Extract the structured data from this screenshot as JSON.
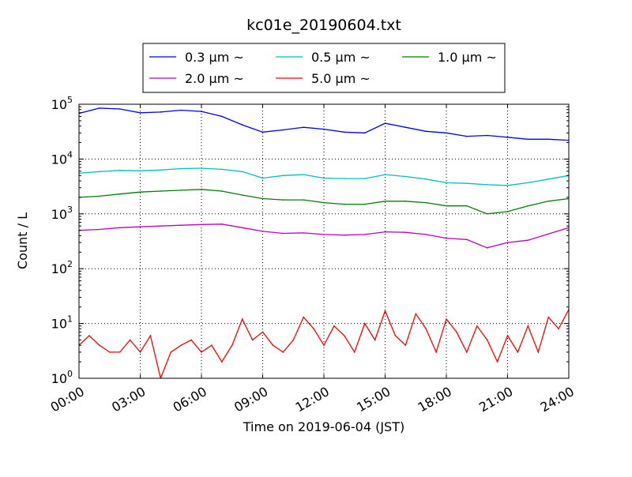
{
  "chart_data": {
    "type": "line",
    "title": "kc01e_20190604.txt",
    "xlabel": "Time on 2019-06-04 (JST)",
    "ylabel": "Count / L",
    "x_range": [
      "00:00",
      "24:00"
    ],
    "x_ticks": [
      "00:00",
      "03:00",
      "06:00",
      "09:00",
      "12:00",
      "15:00",
      "18:00",
      "21:00",
      "24:00"
    ],
    "y_scale": "log",
    "ylim": [
      1,
      100000
    ],
    "y_ticks": [
      {
        "base": "10",
        "exp": "0"
      },
      {
        "base": "10",
        "exp": "1"
      },
      {
        "base": "10",
        "exp": "2"
      },
      {
        "base": "10",
        "exp": "3"
      },
      {
        "base": "10",
        "exp": "4"
      },
      {
        "base": "10",
        "exp": "5"
      }
    ],
    "grid": true,
    "legend_position": "top-center",
    "series": [
      {
        "name": "0.3 μm ~",
        "color": "#0000ff",
        "x": [
          "00:00",
          "01:00",
          "02:00",
          "03:00",
          "04:00",
          "05:00",
          "06:00",
          "07:00",
          "08:00",
          "09:00",
          "10:00",
          "11:00",
          "12:00",
          "13:00",
          "14:00",
          "15:00",
          "16:00",
          "17:00",
          "18:00",
          "19:00",
          "20:00",
          "21:00",
          "22:00",
          "23:00",
          "24:00"
        ],
        "values": [
          68000,
          85000,
          82000,
          70000,
          72000,
          78000,
          74000,
          60000,
          42000,
          31000,
          34000,
          38000,
          35000,
          31000,
          30000,
          45000,
          38000,
          32000,
          30000,
          26000,
          27000,
          25000,
          23000,
          23000,
          22000
        ]
      },
      {
        "name": "0.5 μm ~",
        "color": "#00bfbf",
        "x": [
          "00:00",
          "01:00",
          "02:00",
          "03:00",
          "04:00",
          "05:00",
          "06:00",
          "07:00",
          "08:00",
          "09:00",
          "10:00",
          "11:00",
          "12:00",
          "13:00",
          "14:00",
          "15:00",
          "16:00",
          "17:00",
          "18:00",
          "19:00",
          "20:00",
          "21:00",
          "22:00",
          "23:00",
          "24:00"
        ],
        "values": [
          5500,
          5900,
          6200,
          6100,
          6300,
          6700,
          6800,
          6500,
          5900,
          4500,
          5000,
          5200,
          4500,
          4400,
          4400,
          5200,
          4800,
          4300,
          3700,
          3600,
          3400,
          3300,
          3700,
          4300,
          5000
        ]
      },
      {
        "name": "1.0 μm ~",
        "color": "#008000",
        "x": [
          "00:00",
          "01:00",
          "02:00",
          "03:00",
          "04:00",
          "05:00",
          "06:00",
          "07:00",
          "08:00",
          "09:00",
          "10:00",
          "11:00",
          "12:00",
          "13:00",
          "14:00",
          "15:00",
          "16:00",
          "17:00",
          "18:00",
          "19:00",
          "20:00",
          "21:00",
          "22:00",
          "23:00",
          "24:00"
        ],
        "values": [
          2000,
          2100,
          2300,
          2500,
          2600,
          2700,
          2800,
          2600,
          2200,
          1900,
          1800,
          1800,
          1600,
          1500,
          1500,
          1700,
          1700,
          1600,
          1400,
          1400,
          1000,
          1100,
          1400,
          1700,
          1900
        ]
      },
      {
        "name": "2.0 μm ~",
        "color": "#bf00bf",
        "x": [
          "00:00",
          "01:00",
          "02:00",
          "03:00",
          "04:00",
          "05:00",
          "06:00",
          "07:00",
          "08:00",
          "09:00",
          "10:00",
          "11:00",
          "12:00",
          "13:00",
          "14:00",
          "15:00",
          "16:00",
          "17:00",
          "18:00",
          "19:00",
          "20:00",
          "21:00",
          "22:00",
          "23:00",
          "24:00"
        ],
        "values": [
          500,
          520,
          560,
          580,
          600,
          620,
          640,
          650,
          560,
          480,
          440,
          450,
          420,
          410,
          420,
          470,
          460,
          420,
          360,
          340,
          240,
          300,
          330,
          430,
          560
        ]
      },
      {
        "name": "5.0 μm ~",
        "color": "#ff0000",
        "x": [
          "00:00",
          "00:30",
          "01:00",
          "01:30",
          "02:00",
          "02:30",
          "03:00",
          "03:30",
          "04:00",
          "04:30",
          "05:00",
          "05:30",
          "06:00",
          "06:30",
          "07:00",
          "07:30",
          "08:00",
          "08:30",
          "09:00",
          "09:30",
          "10:00",
          "10:30",
          "11:00",
          "11:30",
          "12:00",
          "12:30",
          "13:00",
          "13:30",
          "14:00",
          "14:30",
          "15:00",
          "15:30",
          "16:00",
          "16:30",
          "17:00",
          "17:30",
          "18:00",
          "18:30",
          "19:00",
          "19:30",
          "20:00",
          "20:30",
          "21:00",
          "21:30",
          "22:00",
          "22:30",
          "23:00",
          "23:30",
          "24:00"
        ],
        "values": [
          4,
          6,
          4,
          3,
          3,
          5,
          3,
          6,
          1,
          3,
          4,
          5,
          3,
          4,
          2,
          4,
          12,
          5,
          7,
          4,
          3,
          5,
          13,
          8,
          4,
          9,
          6,
          3,
          10,
          5,
          17,
          6,
          4,
          15,
          8,
          3,
          12,
          7,
          3,
          9,
          5,
          2,
          6,
          3,
          9,
          3,
          13,
          8,
          18
        ]
      }
    ]
  }
}
